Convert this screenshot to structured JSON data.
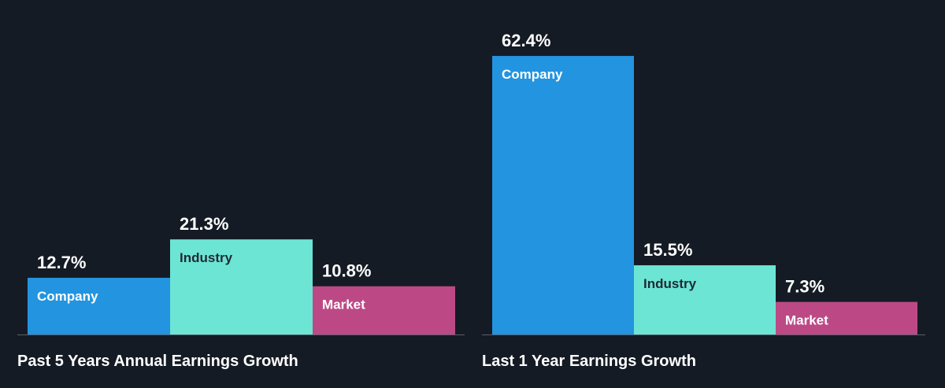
{
  "colors": {
    "background": "#151b24",
    "company": "#2394df",
    "industry": "#6ce5d5",
    "market": "#bc4986",
    "value_text": "#ffffff",
    "title_text": "#ffffff",
    "baseline": "#5a606a"
  },
  "chart_data": [
    {
      "type": "bar",
      "title": "Past 5 Years Annual Earnings Growth",
      "categories": [
        "Company",
        "Industry",
        "Market"
      ],
      "values": [
        12.7,
        21.3,
        10.8
      ],
      "value_labels": [
        "12.7%",
        "21.3%",
        "10.8%"
      ],
      "ylim": [
        0,
        64
      ]
    },
    {
      "type": "bar",
      "title": "Last 1 Year Earnings Growth",
      "categories": [
        "Company",
        "Industry",
        "Market"
      ],
      "values": [
        62.4,
        15.5,
        7.3
      ],
      "value_labels": [
        "62.4%",
        "15.5%",
        "7.3%"
      ],
      "ylim": [
        0,
        64
      ]
    }
  ]
}
